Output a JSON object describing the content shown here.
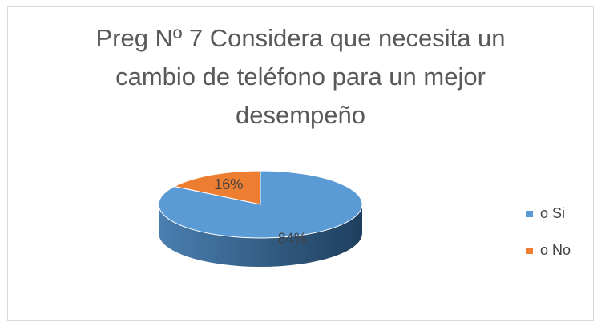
{
  "chart_data": {
    "type": "pie3d",
    "title": "Preg Nº 7 Considera que necesita un cambio de teléfono para un mejor desempeño",
    "categories": [
      "o Si",
      "o No"
    ],
    "values": [
      84,
      16
    ],
    "value_labels": [
      "84%",
      "16%"
    ],
    "colors": [
      "#5b9bd5",
      "#ed7d31"
    ],
    "legend": "right"
  }
}
